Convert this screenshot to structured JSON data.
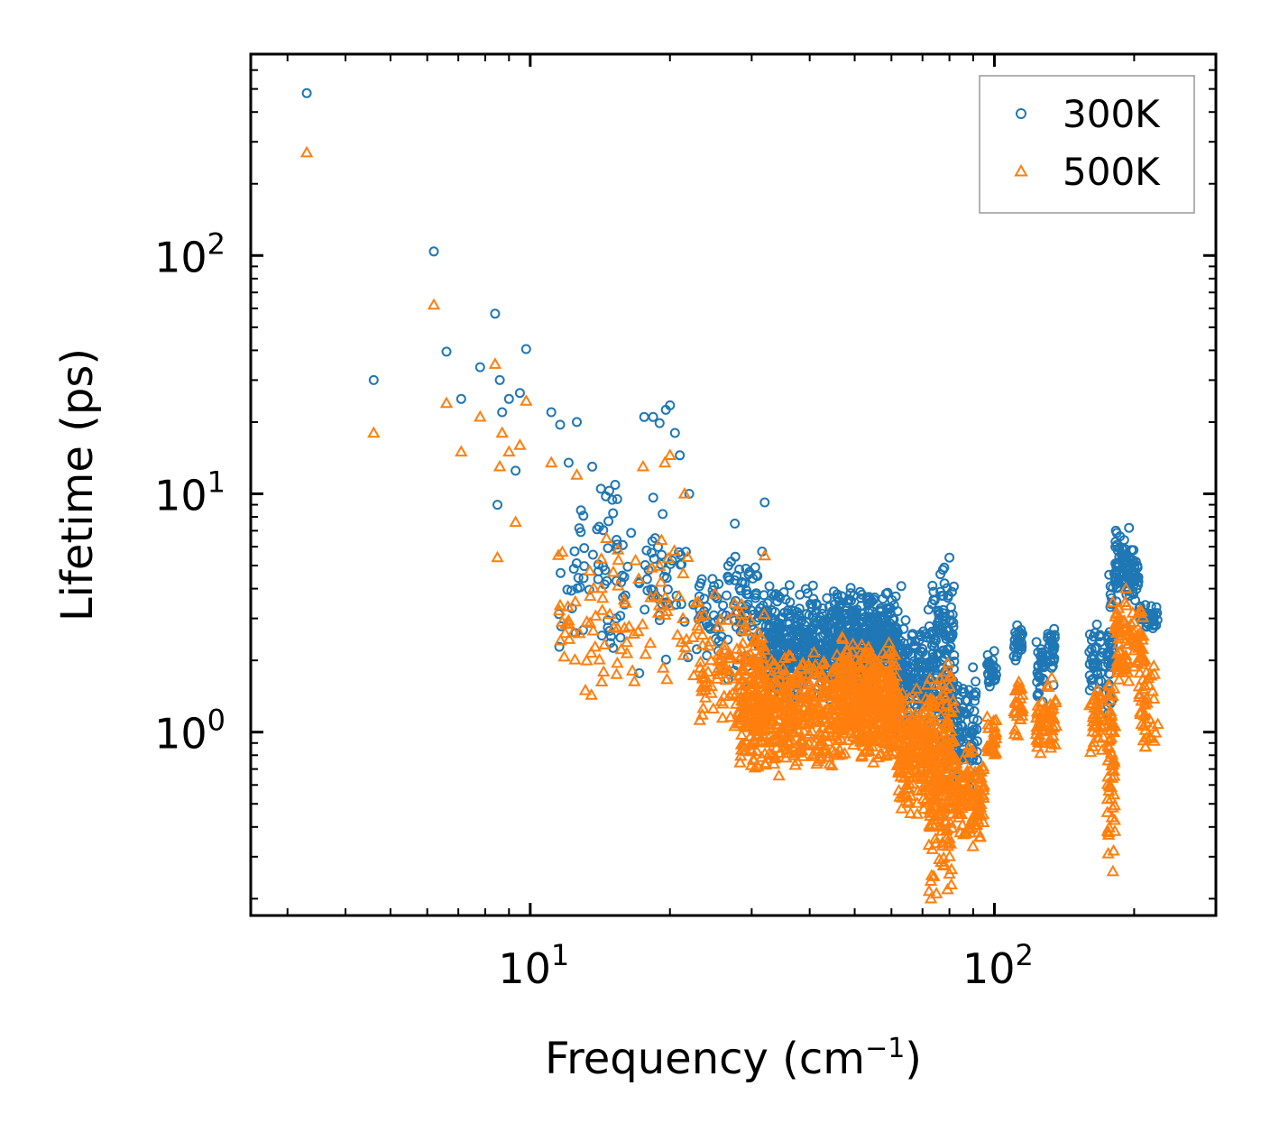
{
  "chart_data": {
    "type": "scatter",
    "xscale": "log",
    "yscale": "log",
    "xlabel": {
      "main": "Frequency (cm",
      "sup": "−1",
      "tail": ")"
    },
    "ylabel": "Lifetime (ps)",
    "xlim": [
      2.5,
      300
    ],
    "ylim": [
      0.17,
      700
    ],
    "x_major_ticks": [
      {
        "value": 10,
        "base": "10",
        "exp": "1"
      },
      {
        "value": 100,
        "base": "10",
        "exp": "2"
      }
    ],
    "y_major_ticks": [
      {
        "value": 1,
        "base": "10",
        "exp": "0"
      },
      {
        "value": 10,
        "base": "10",
        "exp": "1"
      },
      {
        "value": 100,
        "base": "10",
        "exp": "2"
      }
    ],
    "legend_position": "top-right",
    "series": [
      {
        "name": "300K",
        "marker": "circle",
        "color": "#1f77b4",
        "explicit_points": [
          [
            3.3,
            480
          ],
          [
            4.6,
            30
          ],
          [
            6.2,
            104
          ],
          [
            6.6,
            39.5
          ],
          [
            7.1,
            25
          ],
          [
            7.8,
            34
          ],
          [
            8.4,
            57
          ],
          [
            8.6,
            30
          ],
          [
            8.7,
            22
          ],
          [
            9.0,
            25
          ],
          [
            9.3,
            12.5
          ],
          [
            9.5,
            26.5
          ],
          [
            9.8,
            40.5
          ],
          [
            8.5,
            9
          ],
          [
            11.1,
            22
          ],
          [
            11.6,
            19.5
          ],
          [
            12.6,
            20
          ],
          [
            12.1,
            13.5
          ],
          [
            13.6,
            13
          ],
          [
            14.2,
            10.5
          ],
          [
            14.8,
            10.3
          ],
          [
            15.4,
            9.5
          ],
          [
            17.6,
            21
          ],
          [
            18.4,
            21
          ],
          [
            19.0,
            19.8
          ],
          [
            19.6,
            22.5
          ],
          [
            20.0,
            23.5
          ],
          [
            20.5,
            18
          ],
          [
            21.0,
            14.5
          ],
          [
            22.0,
            10
          ],
          [
            32.0,
            9.2
          ],
          [
            27.6,
            7.5
          ],
          [
            80.0,
            5.4
          ],
          [
            78.0,
            4.9
          ],
          [
            63.0,
            4.1
          ],
          [
            195.0,
            7.2
          ]
        ],
        "clusters": [
          {
            "f": [
              11.5,
              23.0
            ],
            "ymin": 1.6,
            "ymax": 11.5,
            "n": 110
          },
          {
            "f": [
              23.0,
              32.0
            ],
            "ymin": 1.5,
            "ymax": 6.5,
            "n": 120
          },
          {
            "f": [
              32.0,
              45.0
            ],
            "ymin": 1.3,
            "ymax": 4.2,
            "n": 380
          },
          {
            "f": [
              45.0,
              62.0
            ],
            "ymin": 1.5,
            "ymax": 4.2,
            "n": 420
          },
          {
            "f": [
              62.0,
              72.0
            ],
            "ymin": 0.95,
            "ymax": 3.0,
            "n": 150
          },
          {
            "f": [
              72.0,
              82.0
            ],
            "ymin": 0.7,
            "ymax": 5.4,
            "n": 170
          },
          {
            "f": [
              82.0,
              92.0
            ],
            "ymin": 0.5,
            "ymax": 1.9,
            "n": 90
          },
          {
            "f": [
              96.0,
              101.0
            ],
            "ymin": 1.5,
            "ymax": 2.2,
            "n": 30
          },
          {
            "f": [
              110.0,
              115.0
            ],
            "ymin": 1.9,
            "ymax": 2.9,
            "n": 30
          },
          {
            "f": [
              123.0,
              128.0
            ],
            "ymin": 1.2,
            "ymax": 2.6,
            "n": 30
          },
          {
            "f": [
              130.0,
              136.0
            ],
            "ymin": 1.5,
            "ymax": 3.1,
            "n": 30
          },
          {
            "f": [
              160.0,
              172.0
            ],
            "ymin": 1.2,
            "ymax": 3.2,
            "n": 40
          },
          {
            "f": [
              175.0,
              180.0
            ],
            "ymin": 1.0,
            "ymax": 5.0,
            "n": 40
          },
          {
            "f": [
              181.0,
              192.0
            ],
            "ymin": 3.5,
            "ymax": 7.5,
            "n": 50
          },
          {
            "f": [
              192.0,
              205.0
            ],
            "ymin": 3.5,
            "ymax": 6.0,
            "n": 50
          },
          {
            "f": [
              205.0,
              225.0
            ],
            "ymin": 2.5,
            "ymax": 3.6,
            "n": 40
          }
        ]
      },
      {
        "name": "500K",
        "marker": "triangle",
        "color": "#ff7f0e",
        "explicit_points": [
          [
            3.3,
            270
          ],
          [
            4.6,
            18
          ],
          [
            6.2,
            62
          ],
          [
            6.6,
            24
          ],
          [
            7.1,
            15
          ],
          [
            7.8,
            21
          ],
          [
            8.4,
            35
          ],
          [
            8.6,
            13
          ],
          [
            8.7,
            18
          ],
          [
            9.0,
            15
          ],
          [
            9.3,
            7.6
          ],
          [
            9.5,
            16
          ],
          [
            9.8,
            24.5
          ],
          [
            8.5,
            5.4
          ],
          [
            11.1,
            13.5
          ],
          [
            11.6,
            3.4
          ],
          [
            12.6,
            12
          ],
          [
            14.6,
            6.5
          ],
          [
            17.5,
            13
          ],
          [
            19.5,
            13.5
          ],
          [
            20.0,
            14.5
          ],
          [
            21.5,
            10
          ],
          [
            32.0,
            5.5
          ],
          [
            25.0,
            3.8
          ],
          [
            47.0,
            2.5
          ],
          [
            73.0,
            0.2
          ],
          [
            75.0,
            0.21
          ],
          [
            180.0,
            0.26
          ],
          [
            180.0,
            3.5
          ],
          [
            192.0,
            4.0
          ]
        ],
        "clusters": [
          {
            "f": [
              11.5,
              23.0
            ],
            "ymin": 1.3,
            "ymax": 7.0,
            "n": 90
          },
          {
            "f": [
              23.0,
              32.0
            ],
            "ymin": 0.9,
            "ymax": 3.8,
            "n": 130
          },
          {
            "f": [
              28.0,
              45.0
            ],
            "ymin": 0.65,
            "ymax": 2.3,
            "n": 450
          },
          {
            "f": [
              45.0,
              62.0
            ],
            "ymin": 0.7,
            "ymax": 2.5,
            "n": 500
          },
          {
            "f": [
              62.0,
              72.0
            ],
            "ymin": 0.45,
            "ymax": 1.6,
            "n": 200
          },
          {
            "f": [
              72.0,
              82.0
            ],
            "ymin": 0.2,
            "ymax": 2.0,
            "n": 230
          },
          {
            "f": [
              82.0,
              95.0
            ],
            "ymin": 0.3,
            "ymax": 0.95,
            "n": 120
          },
          {
            "f": [
              96.0,
              101.0
            ],
            "ymin": 0.75,
            "ymax": 1.2,
            "n": 30
          },
          {
            "f": [
              110.0,
              115.0
            ],
            "ymin": 0.9,
            "ymax": 1.7,
            "n": 30
          },
          {
            "f": [
              123.0,
              128.0
            ],
            "ymin": 0.75,
            "ymax": 1.5,
            "n": 30
          },
          {
            "f": [
              130.0,
              136.0
            ],
            "ymin": 0.75,
            "ymax": 1.8,
            "n": 30
          },
          {
            "f": [
              160.0,
              172.0
            ],
            "ymin": 0.8,
            "ymax": 1.6,
            "n": 40
          },
          {
            "f": [
              175.0,
              182.0
            ],
            "ymin": 0.26,
            "ymax": 2.0,
            "n": 60
          },
          {
            "f": [
              182.0,
              192.0
            ],
            "ymin": 1.5,
            "ymax": 3.8,
            "n": 50
          },
          {
            "f": [
              192.0,
              210.0
            ],
            "ymin": 1.6,
            "ymax": 3.5,
            "n": 50
          },
          {
            "f": [
              205.0,
              225.0
            ],
            "ymin": 0.8,
            "ymax": 2.2,
            "n": 40
          }
        ]
      }
    ]
  }
}
